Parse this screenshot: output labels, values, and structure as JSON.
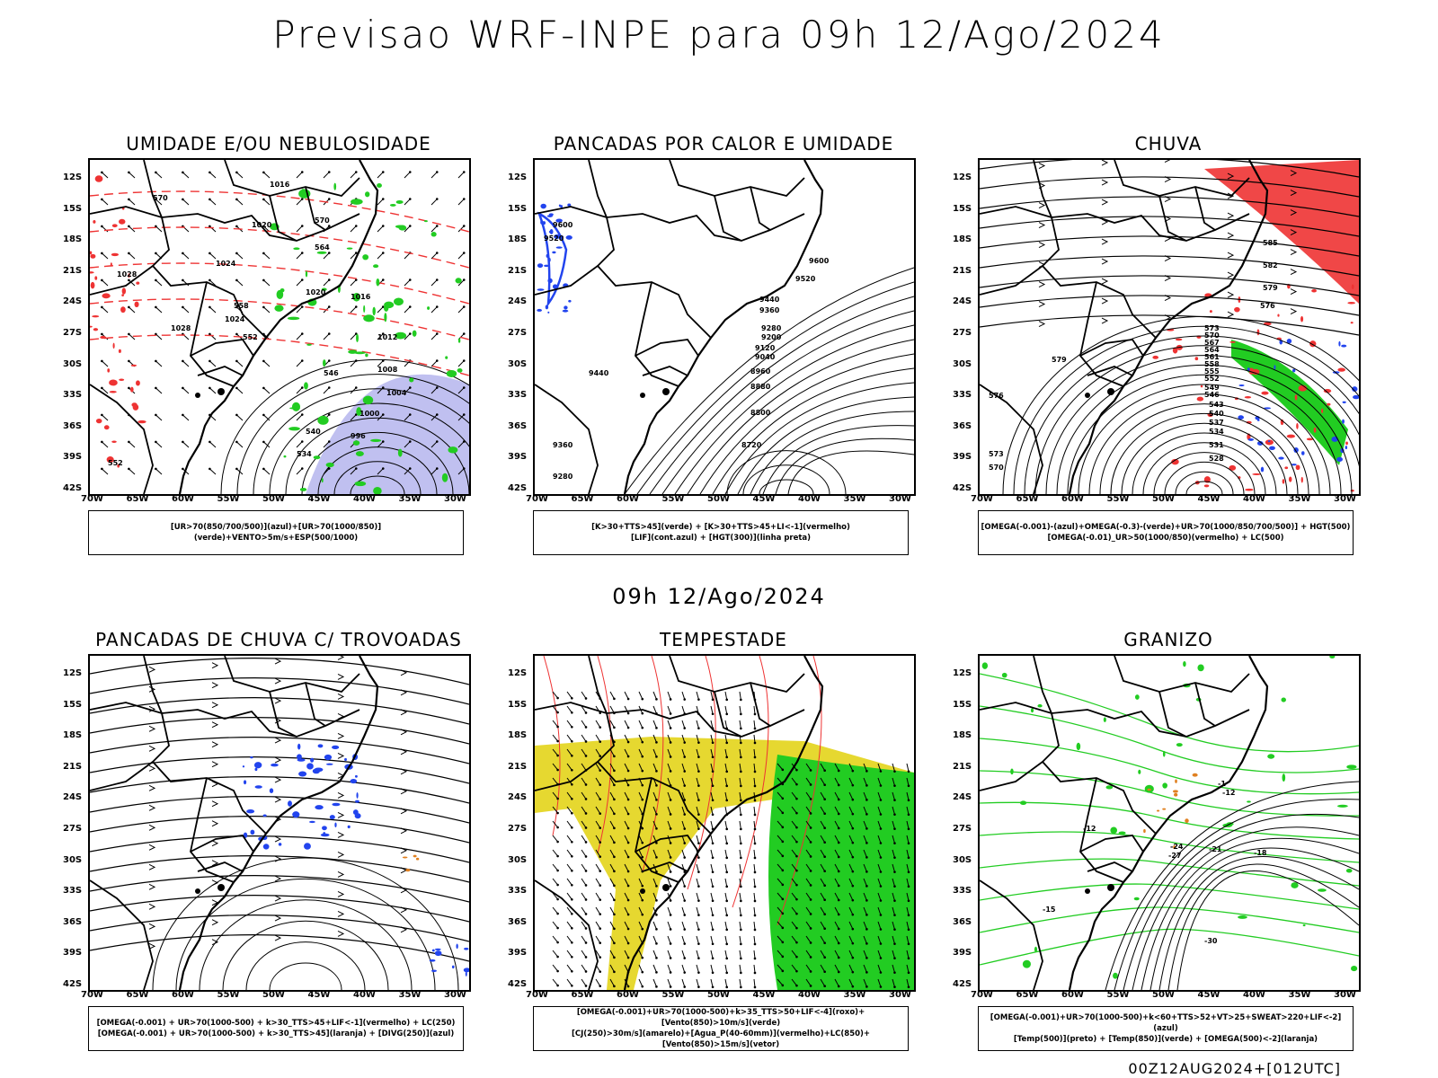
{
  "title": "Previsao WRF-INPE  para 09h 12/Ago/2024",
  "mid_title": "09h 12/Ago/2024",
  "footer": "00Z12AUG2024+[012UTC]",
  "lat_labels": [
    "12S",
    "15S",
    "18S",
    "21S",
    "24S",
    "27S",
    "30S",
    "33S",
    "36S",
    "39S",
    "42S"
  ],
  "lon_labels": [
    "70W",
    "65W",
    "60W",
    "55W",
    "50W",
    "45W",
    "40W",
    "35W",
    "30W"
  ],
  "colors": {
    "green": "#22cc22",
    "red": "#ee3333",
    "blue": "#2244ee",
    "yellow": "#e6d830",
    "lavender": "#b0b0ec",
    "orange": "#e08020"
  },
  "panels": [
    {
      "id": "umidade",
      "title": "UMIDADE E/OU NEBULOSIDADE",
      "legend": [
        "[UR>70(850/700/500)](azul)+[UR>70(1000/850)](verde)+VENTO>5m/s+ESP(500/1000)"
      ],
      "contour_labels": [
        "1016",
        "1020",
        "1024",
        "1024",
        "1028",
        "1028",
        "1020",
        "1016",
        "1012",
        "1008",
        "1004",
        "1000",
        "996",
        "570",
        "570",
        "564",
        "558",
        "552",
        "546",
        "540",
        "534",
        "552"
      ]
    },
    {
      "id": "pancadas-calor",
      "title": "PANCADAS POR CALOR E UMIDADE",
      "legend": [
        "[K>30+TTS>45](verde) + [K>30+TTS>45+LI<-1](vermelho)",
        "[LIF](cont.azul) + [HGT(300)](linha preta)"
      ],
      "contour_labels": [
        "9600",
        "9520",
        "9600",
        "9520",
        "9440",
        "9360",
        "9280",
        "9200",
        "9120",
        "9040",
        "8960",
        "8880",
        "8800",
        "8720",
        "9440",
        "9360",
        "9280"
      ]
    },
    {
      "id": "chuva",
      "title": "CHUVA",
      "legend": [
        "[OMEGA(-0.001)-(azul)+OMEGA(-0.3)-(verde)+UR>70(1000/850/700/500)] + HGT(500)",
        "[OMEGA(-0.01)_UR>50(1000/850)(vermelho) + LC(500)"
      ],
      "contour_labels": [
        "585",
        "582",
        "579",
        "576",
        "573",
        "570",
        "567",
        "564",
        "561",
        "558",
        "555",
        "552",
        "549",
        "546",
        "543",
        "540",
        "537",
        "534",
        "531",
        "528",
        "579",
        "576",
        "573",
        "570"
      ]
    },
    {
      "id": "trovoadas",
      "title": "PANCADAS DE CHUVA C/ TROVOADAS",
      "legend": [
        "[OMEGA(-0.001) + UR>70(1000-500) + k>30_TTS>45+LIF<-1](vermelho) + LC(250)",
        "[OMEGA(-0.001) + UR>70(1000-500) + k>30_TTS>45](laranja) + [DIVG(250)](azul)"
      ],
      "contour_labels": []
    },
    {
      "id": "tempestade",
      "title": "TEMPESTADE",
      "legend": [
        "[OMEGA(-0.001)+UR>70(1000-500)+k>35_TTS>50+LIF<-4](roxo)+[Vento(850)>10m/s](verde)",
        "[CJ(250)>30m/s](amarelo)+[Agua_P(40-60mm)](vermelho)+LC(850)+[Vento(850)>15m/s](vetor)"
      ],
      "contour_labels": []
    },
    {
      "id": "granizo",
      "title": "GRANIZO",
      "legend": [
        "[OMEGA(-0.001)+UR>70(1000-500)+k<60+TTS>52+VT>25+SWEAT>220+LIF<-2](azul)",
        "[Temp(500)](preto) + [Temp(850)](verde) + [OMEGA(500)<-2](laranja)"
      ],
      "contour_labels": [
        "-12",
        "-12",
        "-15",
        "-18",
        "-21",
        "-24",
        "-27",
        "-30",
        "-1"
      ]
    }
  ]
}
